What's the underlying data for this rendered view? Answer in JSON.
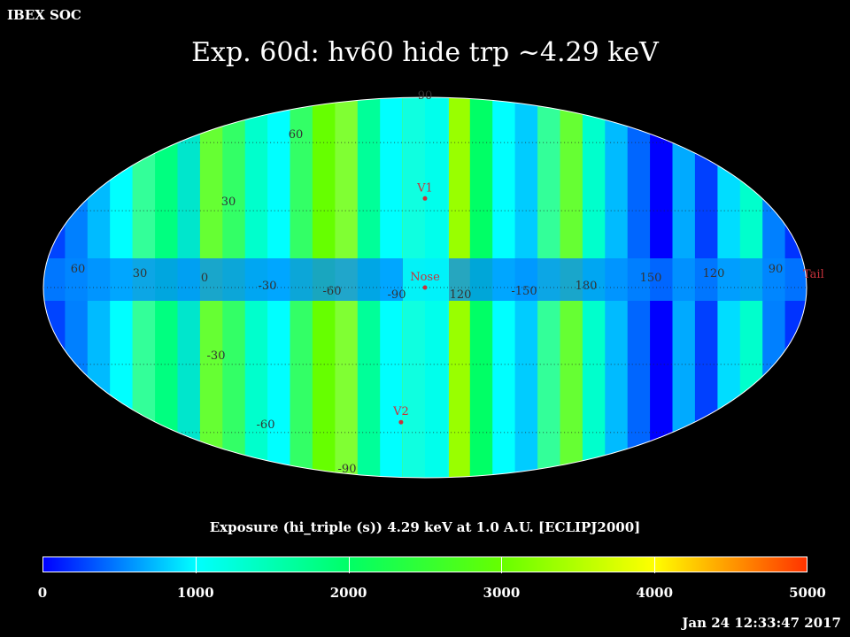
{
  "header": {
    "soc_label": "IBEX SOC",
    "title": "Exp.   60d: hv60 hide trp ~4.29 keV"
  },
  "map": {
    "projection": "mollweide",
    "latitude_labels": [
      "90",
      "60",
      "30",
      "-30",
      "-60",
      "-90"
    ],
    "longitude_labels": [
      "60",
      "30",
      "0",
      "-30",
      "-60",
      "-90",
      "120",
      "-150",
      "180",
      "150",
      "120",
      "90"
    ],
    "markers": [
      {
        "label": "V1",
        "lon": 0,
        "lat": 35
      },
      {
        "label": "Nose",
        "lon": 0,
        "lat": 0
      },
      {
        "label": "V2",
        "lon": -16,
        "lat": -55
      }
    ],
    "edge_label": "Tail",
    "marker_color": "#c8323c"
  },
  "colorbar": {
    "caption": "Exposure (hi_triple (s))  4.29 keV at 1.0 A.U. [ECLIPJ2000]",
    "min": 0,
    "max": 5000,
    "tick_labels": [
      "0",
      "1000",
      "2000",
      "3000",
      "4000",
      "5000"
    ],
    "colors": [
      "#0000ff",
      "#00ffff",
      "#00ff66",
      "#66ff00",
      "#ffff00",
      "#ff3300"
    ]
  },
  "footer": {
    "timestamp": "Jan 24 12:33:47 2017"
  }
}
